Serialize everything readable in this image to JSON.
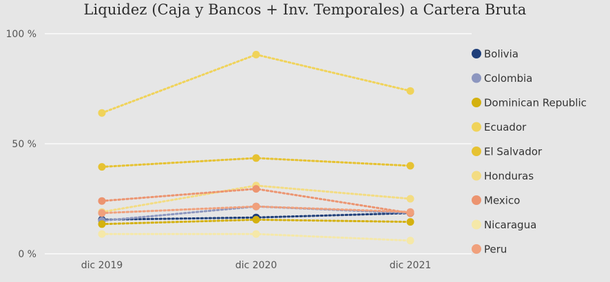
{
  "chart_data": {
    "type": "line",
    "title": "Liquidez (Caja y Bancos + Inv. Temporales) a Cartera Bruta",
    "categories": [
      "dic 2019",
      "dic 2020",
      "dic 2021"
    ],
    "yticks": [
      "0 %",
      "50 %",
      "100 %"
    ],
    "ylim": [
      0,
      100
    ],
    "grid": true,
    "legend_position": "right",
    "series": [
      {
        "name": "Bolivia",
        "color": "#1f3f7a",
        "values": [
          15.5,
          16.5,
          18.5
        ]
      },
      {
        "name": "Colombia",
        "color": "#8c96bf",
        "values": [
          15,
          21.5,
          18.5
        ]
      },
      {
        "name": "Dominican Republic",
        "color": "#d4b10f",
        "values": [
          13.5,
          15.5,
          14.5
        ]
      },
      {
        "name": "Ecuador",
        "color": "#f0d35a",
        "values": [
          64,
          90.5,
          74
        ]
      },
      {
        "name": "El Salvador",
        "color": "#e6c232",
        "values": [
          39.5,
          43.5,
          40
        ]
      },
      {
        "name": "Honduras",
        "color": "#f3dc82",
        "values": [
          19,
          31,
          25
        ]
      },
      {
        "name": "Mexico",
        "color": "#ec9470",
        "values": [
          24,
          29.5,
          18.5
        ]
      },
      {
        "name": "Nicaragua",
        "color": "#f5e8a8",
        "values": [
          9,
          9,
          6
        ]
      },
      {
        "name": "Peru",
        "color": "#f0a07c",
        "values": [
          18.5,
          21.5,
          19
        ]
      }
    ]
  }
}
